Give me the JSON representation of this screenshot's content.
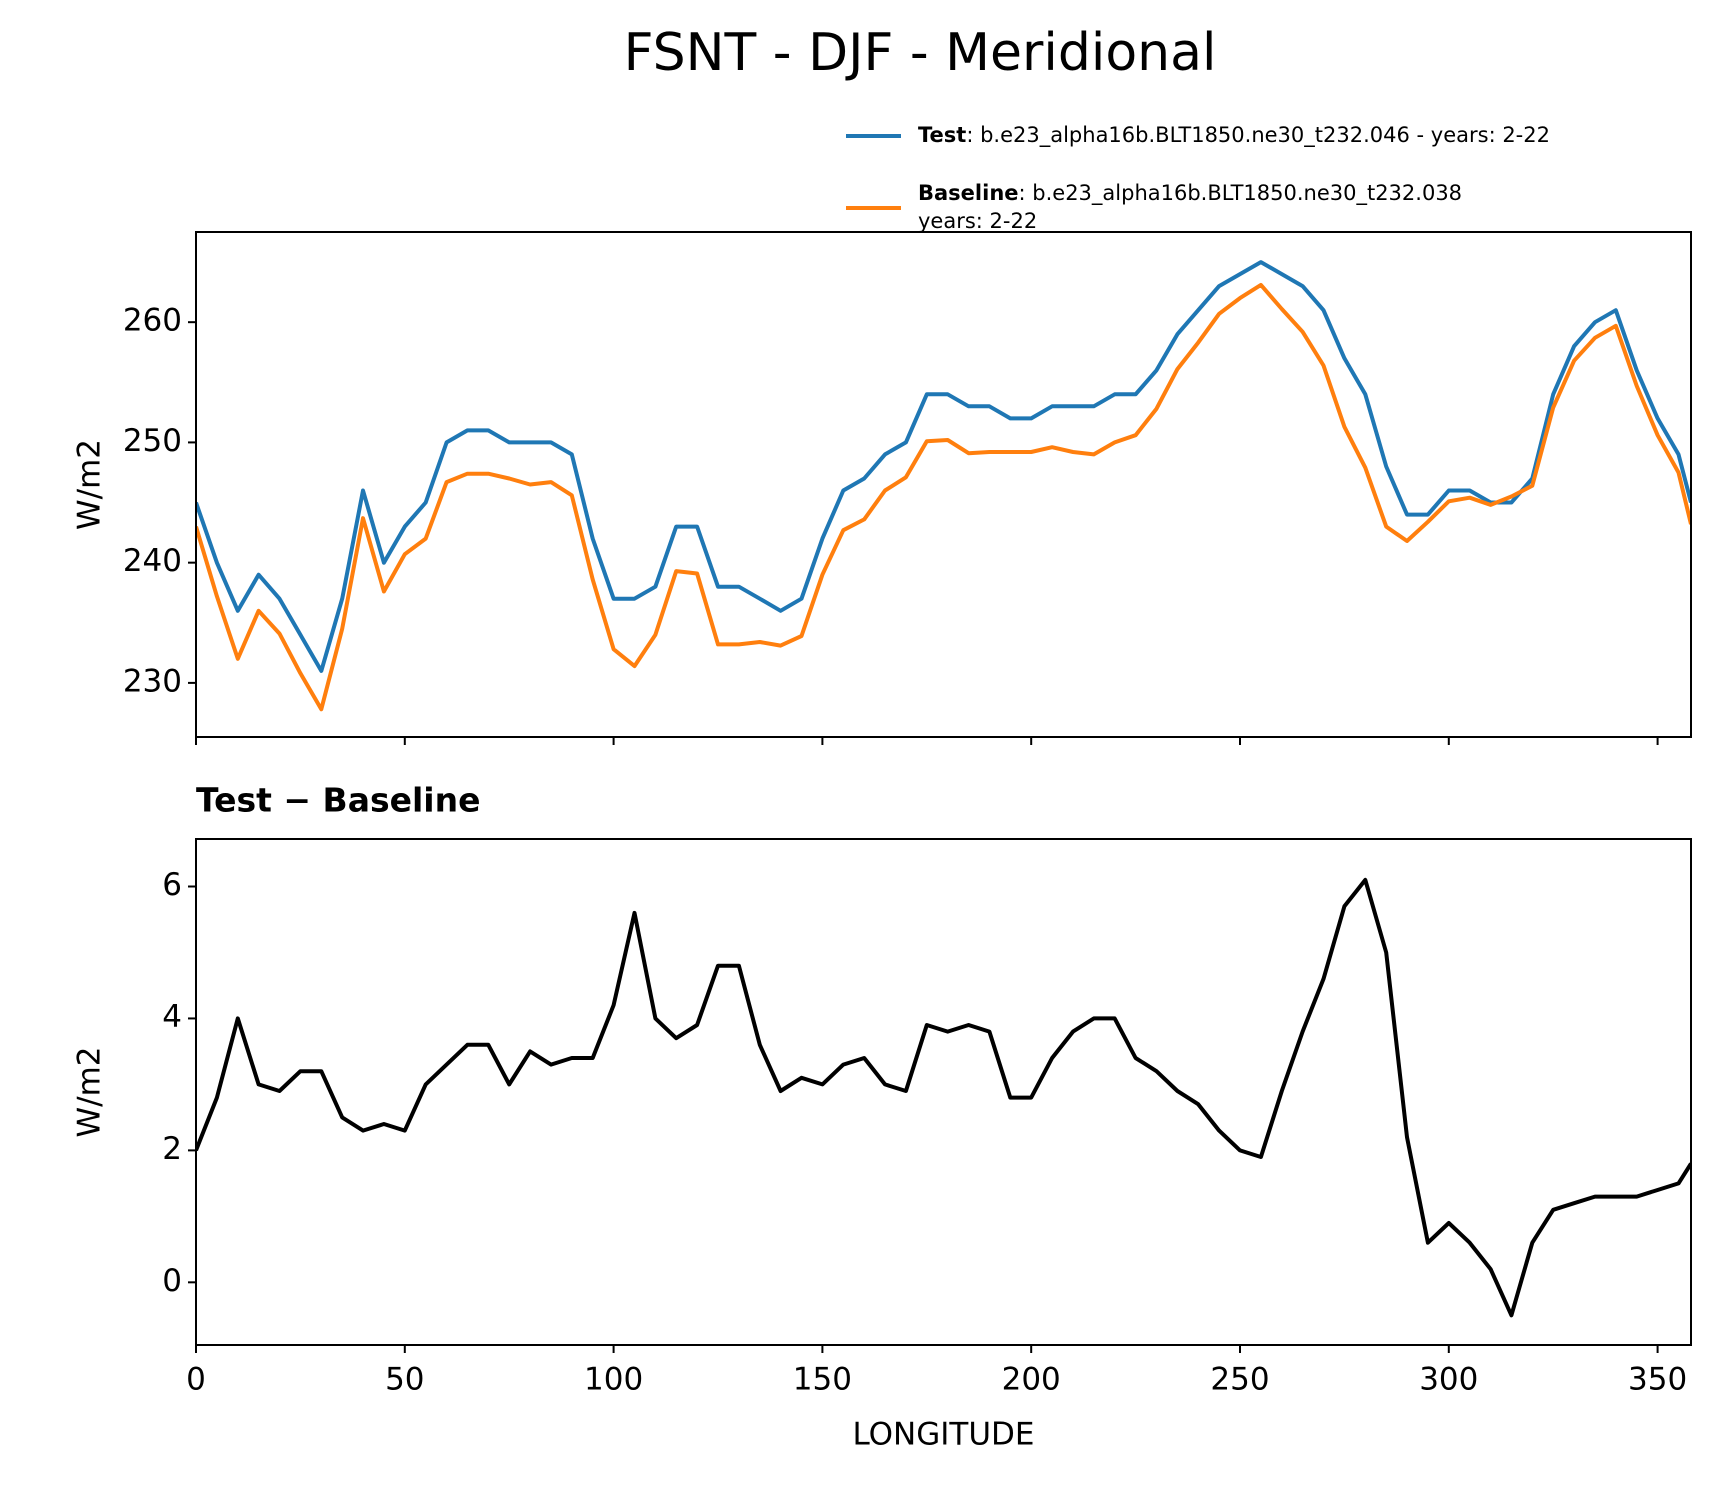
{
  "chart_data": [
    {
      "type": "line",
      "title": "FSNT - DJF - Meridional",
      "ylabel": "W/m2",
      "x": [
        0,
        5,
        10,
        15,
        20,
        25,
        30,
        35,
        40,
        45,
        50,
        55,
        60,
        65,
        70,
        75,
        80,
        85,
        90,
        95,
        100,
        105,
        110,
        115,
        120,
        125,
        130,
        135,
        140,
        145,
        150,
        155,
        160,
        165,
        170,
        175,
        180,
        185,
        190,
        195,
        200,
        205,
        210,
        215,
        220,
        225,
        230,
        235,
        240,
        245,
        250,
        255,
        260,
        265,
        270,
        275,
        280,
        285,
        290,
        295,
        300,
        305,
        310,
        315,
        320,
        325,
        330,
        335,
        340,
        345,
        350,
        355,
        358
      ],
      "series": [
        {
          "name": "Test",
          "description": [
            ": b.e23_alpha16b.BLT1850.ne30_t232.046 - years: 2-22"
          ],
          "color": "#1f77b4",
          "values": [
            245,
            240,
            236,
            239,
            237,
            234,
            231,
            237,
            246,
            240,
            243,
            245,
            250,
            251,
            251,
            250,
            250,
            250,
            249,
            242,
            237,
            237,
            238,
            243,
            243,
            238,
            238,
            237,
            236,
            237,
            242,
            246,
            247,
            249,
            250,
            254,
            254,
            253,
            253,
            252,
            252,
            253,
            253,
            253,
            254,
            254,
            256,
            259,
            261,
            263,
            264,
            265,
            264,
            263,
            261,
            257,
            254,
            248,
            244,
            244,
            246,
            246,
            245,
            245,
            247,
            254,
            258,
            260,
            261,
            256,
            252,
            249,
            245
          ]
        },
        {
          "name": "Baseline",
          "description": [
            ": b.e23_alpha16b.BLT1850.ne30_t232.038",
            "years: 2-22"
          ],
          "color": "#ff7f0e",
          "values": [
            243,
            237.2,
            232,
            236,
            234.1,
            230.8,
            227.8,
            234.5,
            243.7,
            237.6,
            240.7,
            242,
            246.7,
            247.4,
            247.4,
            247,
            246.5,
            246.7,
            245.6,
            238.6,
            232.8,
            231.4,
            234,
            239.3,
            239.1,
            233.2,
            233.2,
            233.4,
            233.1,
            233.9,
            239,
            242.7,
            243.6,
            246,
            247.1,
            250.1,
            250.2,
            249.1,
            249.2,
            249.2,
            249.2,
            249.6,
            249.2,
            249,
            250,
            250.6,
            252.8,
            256.1,
            258.3,
            260.7,
            262,
            263.1,
            261.1,
            259.2,
            256.4,
            251.3,
            247.9,
            243,
            241.8,
            243.4,
            245.1,
            245.4,
            244.8,
            245.5,
            246.4,
            252.9,
            256.8,
            258.7,
            259.7,
            254.7,
            250.6,
            247.5,
            243.2
          ]
        }
      ],
      "xlim": [
        0,
        358
      ],
      "xticks": [
        0,
        50,
        100,
        150,
        200,
        250,
        300,
        350
      ],
      "xticklabels": false,
      "ylim": [
        225.5,
        267.5
      ],
      "yticks": [
        230,
        240,
        250,
        260
      ]
    },
    {
      "type": "line",
      "title": "Test − Baseline",
      "ylabel": "W/m2",
      "xlabel": "LONGITUDE",
      "x": [
        0,
        5,
        10,
        15,
        20,
        25,
        30,
        35,
        40,
        45,
        50,
        55,
        60,
        65,
        70,
        75,
        80,
        85,
        90,
        95,
        100,
        105,
        110,
        115,
        120,
        125,
        130,
        135,
        140,
        145,
        150,
        155,
        160,
        165,
        170,
        175,
        180,
        185,
        190,
        195,
        200,
        205,
        210,
        215,
        220,
        225,
        230,
        235,
        240,
        245,
        250,
        255,
        260,
        265,
        270,
        275,
        280,
        285,
        290,
        295,
        300,
        305,
        310,
        315,
        320,
        325,
        330,
        335,
        340,
        345,
        350,
        355,
        358
      ],
      "series": [
        {
          "color": "#000000",
          "values": [
            2.0,
            2.8,
            4.0,
            3.0,
            2.9,
            3.2,
            3.2,
            2.5,
            2.3,
            2.4,
            2.3,
            3.0,
            3.3,
            3.6,
            3.6,
            3.0,
            3.5,
            3.3,
            3.4,
            3.4,
            4.2,
            5.6,
            4.0,
            3.7,
            3.9,
            4.8,
            4.8,
            3.6,
            2.9,
            3.1,
            3.0,
            3.3,
            3.4,
            3.0,
            2.9,
            3.9,
            3.8,
            3.9,
            3.8,
            2.8,
            2.8,
            3.4,
            3.8,
            4.0,
            4.0,
            3.4,
            3.2,
            2.9,
            2.7,
            2.3,
            2.0,
            1.9,
            2.9,
            3.8,
            4.6,
            5.7,
            6.1,
            5.0,
            2.2,
            0.6,
            0.9,
            0.6,
            0.2,
            -0.5,
            0.6,
            1.1,
            1.2,
            1.3,
            1.3,
            1.3,
            1.4,
            1.5,
            1.8
          ]
        }
      ],
      "xlim": [
        0,
        358
      ],
      "xticks": [
        0,
        50,
        100,
        150,
        200,
        250,
        300,
        350
      ],
      "xticklabels": true,
      "ylim": [
        -0.95,
        6.72
      ],
      "yticks": [
        0,
        2,
        4,
        6
      ]
    }
  ]
}
